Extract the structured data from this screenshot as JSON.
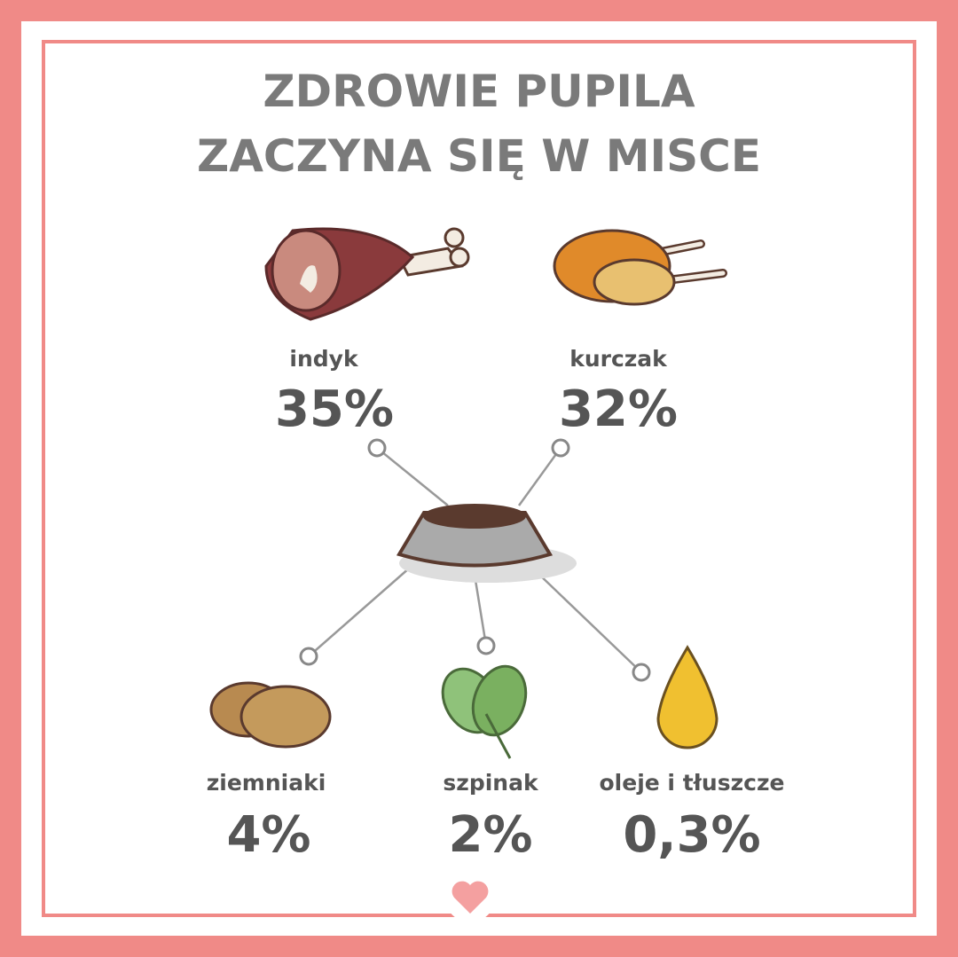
{
  "header": {
    "title_lines": [
      "ZDROWIE PUPILA",
      "ZACZYNA SIĘ W MISCE"
    ]
  },
  "items": [
    {
      "label": "indyk",
      "value": "35%"
    },
    {
      "label": "kurczak",
      "value": "32%"
    },
    {
      "label": "ziemniaki",
      "value": "4%"
    },
    {
      "label": "szpinak",
      "value": "2%"
    },
    {
      "label": "oleje i tłuszcze",
      "value": "0,3%"
    }
  ]
}
